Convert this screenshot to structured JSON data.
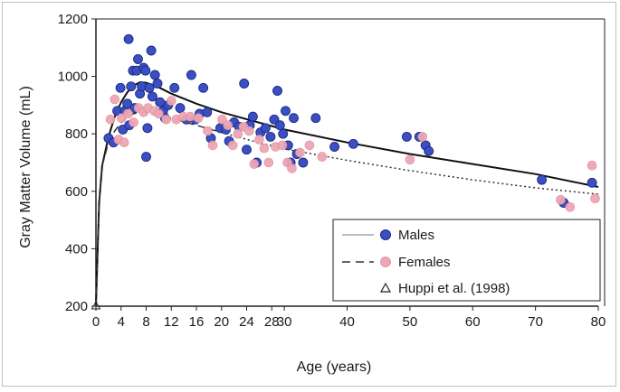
{
  "chart_data": {
    "type": "scatter",
    "title": "",
    "xlabel": "Age (years)",
    "ylabel": "Gray Matter Volume (mL)",
    "xlim": [
      0,
      80
    ],
    "ylim": [
      200,
      1200
    ],
    "x_ticks": [
      0,
      4,
      8,
      12,
      16,
      20,
      24,
      28,
      30,
      40,
      50,
      60,
      70,
      80
    ],
    "y_ticks": [
      200,
      400,
      600,
      800,
      1000,
      1200
    ],
    "grid": false,
    "legend_position": "bottom-right",
    "legend": {
      "males": "Males",
      "females": "Females",
      "huppi": "Huppi et al. (1998)"
    },
    "colors": {
      "males": "#3b4fc4",
      "females": "#eea7b4",
      "fit_male": "#111111",
      "fit_female": "#333333"
    },
    "series": [
      {
        "name": "Males",
        "marker": "circle",
        "points": [
          [
            2.0,
            785
          ],
          [
            2.8,
            770
          ],
          [
            3.4,
            880
          ],
          [
            3.9,
            960
          ],
          [
            4.3,
            815
          ],
          [
            4.6,
            880
          ],
          [
            5.0,
            905
          ],
          [
            5.3,
            830
          ],
          [
            5.6,
            965
          ],
          [
            5.2,
            1130
          ],
          [
            5.9,
            1020
          ],
          [
            6.2,
            890
          ],
          [
            6.5,
            1020
          ],
          [
            6.7,
            1060
          ],
          [
            7.0,
            940
          ],
          [
            7.3,
            965
          ],
          [
            7.6,
            1030
          ],
          [
            7.9,
            1020
          ],
          [
            8.0,
            720
          ],
          [
            8.2,
            820
          ],
          [
            8.5,
            960
          ],
          [
            8.8,
            1090
          ],
          [
            9.0,
            930
          ],
          [
            9.4,
            1005
          ],
          [
            9.8,
            975
          ],
          [
            10.2,
            910
          ],
          [
            10.7,
            880
          ],
          [
            11.0,
            855
          ],
          [
            11.5,
            900
          ],
          [
            12.5,
            960
          ],
          [
            13.4,
            890
          ],
          [
            14.4,
            850
          ],
          [
            15.2,
            1005
          ],
          [
            15.8,
            850
          ],
          [
            16.5,
            870
          ],
          [
            17.1,
            960
          ],
          [
            17.7,
            875
          ],
          [
            18.3,
            785
          ],
          [
            19.8,
            820
          ],
          [
            20.7,
            815
          ],
          [
            21.2,
            775
          ],
          [
            22.0,
            840
          ],
          [
            22.8,
            825
          ],
          [
            23.6,
            975
          ],
          [
            24.0,
            745
          ],
          [
            24.5,
            830
          ],
          [
            25.0,
            860
          ],
          [
            25.6,
            700
          ],
          [
            26.2,
            805
          ],
          [
            27.0,
            820
          ],
          [
            27.8,
            790
          ],
          [
            28.4,
            850
          ],
          [
            28.9,
            950
          ],
          [
            29.3,
            830
          ],
          [
            29.8,
            800
          ],
          [
            30.2,
            880
          ],
          [
            30.6,
            760
          ],
          [
            31.0,
            700
          ],
          [
            31.5,
            855
          ],
          [
            32.0,
            730
          ],
          [
            33.0,
            700
          ],
          [
            35.0,
            855
          ],
          [
            38.0,
            755
          ],
          [
            41.0,
            765
          ],
          [
            49.5,
            790
          ],
          [
            51.5,
            790
          ],
          [
            52.5,
            760
          ],
          [
            53.0,
            740
          ],
          [
            71.0,
            640
          ],
          [
            74.5,
            560
          ],
          [
            79.0,
            630
          ]
        ]
      },
      {
        "name": "Females",
        "marker": "circle",
        "points": [
          [
            2.3,
            850
          ],
          [
            3.0,
            920
          ],
          [
            3.6,
            780
          ],
          [
            4.1,
            855
          ],
          [
            4.5,
            770
          ],
          [
            5.1,
            870
          ],
          [
            6.0,
            840
          ],
          [
            6.8,
            890
          ],
          [
            7.6,
            875
          ],
          [
            8.3,
            890
          ],
          [
            9.3,
            880
          ],
          [
            10.0,
            870
          ],
          [
            11.2,
            850
          ],
          [
            12.0,
            915
          ],
          [
            12.8,
            850
          ],
          [
            13.9,
            860
          ],
          [
            15.0,
            860
          ],
          [
            16.3,
            855
          ],
          [
            17.8,
            810
          ],
          [
            18.6,
            760
          ],
          [
            20.1,
            850
          ],
          [
            21.0,
            830
          ],
          [
            21.8,
            760
          ],
          [
            22.6,
            800
          ],
          [
            23.5,
            825
          ],
          [
            24.4,
            810
          ],
          [
            25.2,
            695
          ],
          [
            26.0,
            780
          ],
          [
            26.8,
            750
          ],
          [
            27.5,
            700
          ],
          [
            28.6,
            755
          ],
          [
            29.7,
            760
          ],
          [
            30.5,
            700
          ],
          [
            31.2,
            680
          ],
          [
            32.5,
            735
          ],
          [
            34.0,
            760
          ],
          [
            36.0,
            720
          ],
          [
            50.0,
            710
          ],
          [
            52.0,
            790
          ],
          [
            74.0,
            570
          ],
          [
            75.5,
            545
          ],
          [
            79.0,
            690
          ],
          [
            79.5,
            575
          ]
        ]
      },
      {
        "name": "Males fit",
        "line": "solid",
        "points": [
          [
            0,
            200
          ],
          [
            0.5,
            560
          ],
          [
            1,
            690
          ],
          [
            2,
            790
          ],
          [
            3,
            860
          ],
          [
            4,
            910
          ],
          [
            5,
            945
          ],
          [
            6,
            968
          ],
          [
            7,
            980
          ],
          [
            8,
            978
          ],
          [
            10,
            962
          ],
          [
            12,
            940
          ],
          [
            16,
            905
          ],
          [
            20,
            875
          ],
          [
            25,
            845
          ],
          [
            30,
            815
          ],
          [
            40,
            770
          ],
          [
            50,
            730
          ],
          [
            60,
            695
          ],
          [
            70,
            660
          ],
          [
            80,
            615
          ]
        ]
      },
      {
        "name": "Females fit",
        "line": "dashed",
        "points": [
          [
            0,
            200
          ],
          [
            0.5,
            560
          ],
          [
            1,
            690
          ],
          [
            2,
            770
          ],
          [
            3,
            810
          ],
          [
            4,
            840
          ],
          [
            5,
            860
          ],
          [
            6,
            870
          ],
          [
            7,
            875
          ],
          [
            8,
            875
          ],
          [
            10,
            868
          ],
          [
            12,
            855
          ],
          [
            16,
            830
          ],
          [
            20,
            805
          ]
        ]
      },
      {
        "name": "Females fit (dotted)",
        "line": "dotted",
        "points": [
          [
            20,
            805
          ],
          [
            25,
            775
          ],
          [
            30,
            748
          ],
          [
            40,
            708
          ],
          [
            50,
            672
          ],
          [
            60,
            640
          ],
          [
            70,
            612
          ],
          [
            80,
            590
          ]
        ]
      },
      {
        "name": "Huppi et al. (1998)",
        "marker": "triangle",
        "points": [
          [
            0,
            200
          ]
        ]
      }
    ]
  }
}
